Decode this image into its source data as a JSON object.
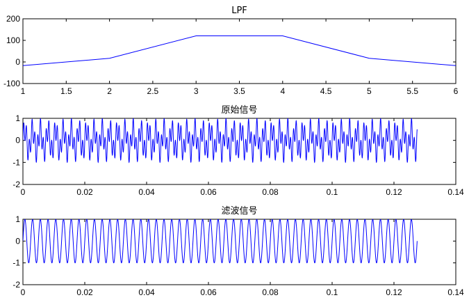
{
  "chart_data": [
    {
      "type": "line",
      "title": "LPF",
      "xlabel": "",
      "ylabel": "",
      "xlim": [
        1,
        6
      ],
      "ylim": [
        -100,
        200
      ],
      "xticks": [
        "1",
        "1.5",
        "2",
        "2.5",
        "3",
        "3.5",
        "4",
        "4.5",
        "5",
        "5.5",
        "6"
      ],
      "yticks": [
        "-100",
        "0",
        "100",
        "200"
      ],
      "series": [
        {
          "x": [
            1,
            2,
            3,
            4,
            5,
            6
          ],
          "y": [
            -17,
            17,
            121,
            121,
            17,
            -17
          ],
          "color": "#0000ff"
        }
      ]
    },
    {
      "type": "line",
      "title": "原始信号",
      "xlabel": "",
      "ylabel": "",
      "xlim": [
        0,
        0.14
      ],
      "ylim": [
        -2,
        1
      ],
      "xticks": [
        "0",
        "0.02",
        "0.04",
        "0.06",
        "0.08",
        "0.1",
        "0.12",
        "0.14"
      ],
      "yticks": [
        "-2",
        "-1",
        "0",
        "1"
      ],
      "series": [
        {
          "color": "#0000ff",
          "x_range": [
            0,
            0.1275
          ],
          "components": [
            {
              "amplitude": 0.5,
              "frequency_hz": 400
            },
            {
              "amplitude": 0.5,
              "frequency_hz": 1100
            }
          ]
        }
      ]
    },
    {
      "type": "line",
      "title": "滤波信号",
      "xlabel": "",
      "ylabel": "",
      "xlim": [
        0,
        0.14
      ],
      "ylim": [
        -2,
        1
      ],
      "xticks": [
        "0",
        "0.02",
        "0.04",
        "0.06",
        "0.08",
        "0.1",
        "0.12",
        "0.14"
      ],
      "yticks": [
        "-2",
        "-1",
        "0",
        "1"
      ],
      "series": [
        {
          "color": "#0000ff",
          "x_range": [
            0,
            0.1275
          ],
          "components": [
            {
              "amplitude": 1.0,
              "frequency_hz": 400
            }
          ]
        }
      ]
    }
  ]
}
